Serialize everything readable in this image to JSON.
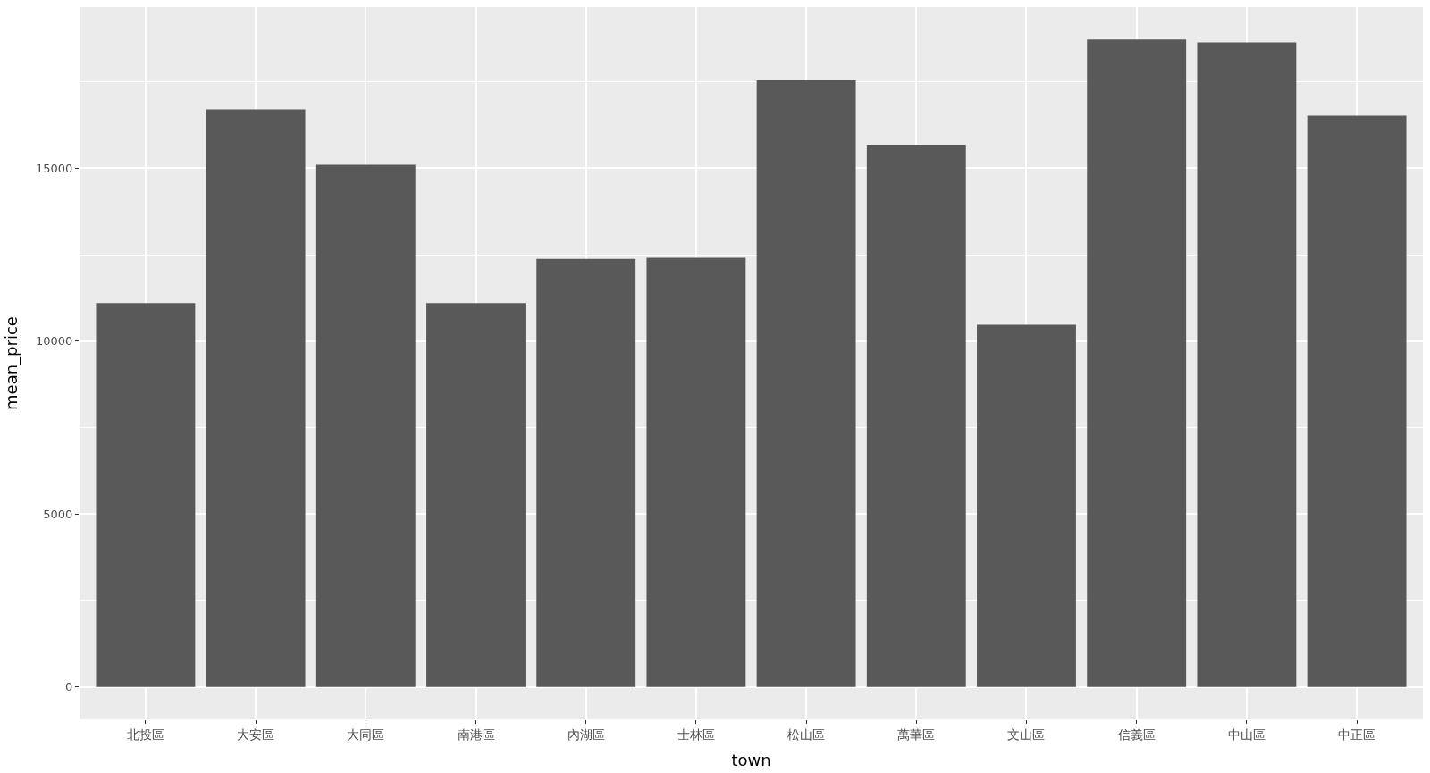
{
  "chart_data": {
    "type": "bar",
    "xlabel": "town",
    "ylabel": "mean_price",
    "categories": [
      "北投區",
      "大安區",
      "大同區",
      "南港區",
      "內湖區",
      "士林區",
      "松山區",
      "萬華區",
      "文山區",
      "信義區",
      "中山區",
      "中正區"
    ],
    "values": [
      11100,
      16700,
      15100,
      11100,
      12380,
      12410,
      17540,
      15680,
      10470,
      18720,
      18640,
      16520
    ],
    "color": "#595959",
    "ylim": [
      -940,
      19660
    ],
    "yticks": [
      0,
      5000,
      10000,
      15000
    ],
    "grid": true,
    "legend": false
  }
}
